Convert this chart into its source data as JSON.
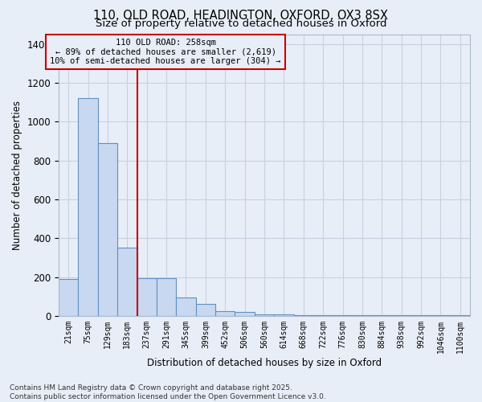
{
  "title1": "110, OLD ROAD, HEADINGTON, OXFORD, OX3 8SX",
  "title2": "Size of property relative to detached houses in Oxford",
  "xlabel": "Distribution of detached houses by size in Oxford",
  "ylabel": "Number of detached properties",
  "categories": [
    "21sqm",
    "75sqm",
    "129sqm",
    "183sqm",
    "237sqm",
    "291sqm",
    "345sqm",
    "399sqm",
    "452sqm",
    "506sqm",
    "560sqm",
    "614sqm",
    "668sqm",
    "722sqm",
    "776sqm",
    "830sqm",
    "884sqm",
    "938sqm",
    "992sqm",
    "1046sqm",
    "1100sqm"
  ],
  "values": [
    190,
    1120,
    890,
    350,
    195,
    195,
    95,
    60,
    25,
    20,
    8,
    10,
    5,
    5,
    5,
    5,
    2,
    2,
    2,
    2,
    2
  ],
  "bar_color": "#c8d8f0",
  "bar_edge_color": "#6090c0",
  "vline_color": "#cc0000",
  "annotation_text_line1": "110 OLD ROAD: 258sqm",
  "annotation_text_line2": "← 89% of detached houses are smaller (2,619)",
  "annotation_text_line3": "10% of semi-detached houses are larger (304) →",
  "background_color": "#e8eef8",
  "plot_bg_color": "#e8eef8",
  "grid_color": "#c8d0e0",
  "footnote1": "Contains HM Land Registry data © Crown copyright and database right 2025.",
  "footnote2": "Contains public sector information licensed under the Open Government Licence v3.0.",
  "ylim": [
    0,
    1450
  ],
  "title_fontsize": 10.5,
  "subtitle_fontsize": 9.5,
  "axis_fontsize": 8.5,
  "tick_fontsize": 7,
  "footnote_fontsize": 6.5,
  "vline_pos": 3.5
}
